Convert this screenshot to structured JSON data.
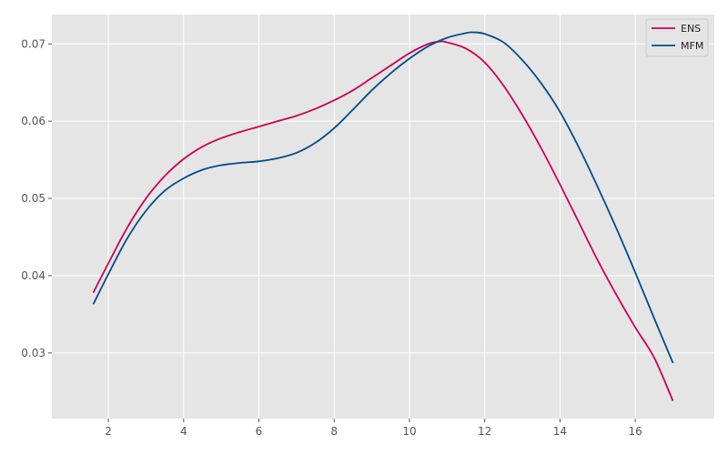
{
  "chart_data": {
    "type": "line",
    "title": "",
    "xlabel": "",
    "ylabel": "",
    "xlim": [
      0.5,
      18.1
    ],
    "ylim": [
      0.0215,
      0.0738
    ],
    "xticks": [
      2,
      4,
      6,
      8,
      10,
      12,
      14,
      16
    ],
    "yticks": [
      0.03,
      0.04,
      0.05,
      0.06,
      0.07
    ],
    "xtick_labels": [
      "2",
      "4",
      "6",
      "8",
      "10",
      "12",
      "14",
      "16"
    ],
    "ytick_labels": [
      "0.03",
      "0.04",
      "0.05",
      "0.06",
      "0.07"
    ],
    "grid": true,
    "background": "#e5e5e5",
    "legend": {
      "position": "top-right"
    },
    "series": [
      {
        "name": "ENS",
        "color": "#cc0055",
        "points": [
          [
            1.6,
            0.0378
          ],
          [
            2.0,
            0.0416
          ],
          [
            2.5,
            0.0462
          ],
          [
            3.0,
            0.05
          ],
          [
            3.5,
            0.0529
          ],
          [
            4.0,
            0.0551
          ],
          [
            4.5,
            0.0567
          ],
          [
            5.0,
            0.0578
          ],
          [
            5.5,
            0.0586
          ],
          [
            6.0,
            0.0593
          ],
          [
            6.5,
            0.06
          ],
          [
            7.0,
            0.0607
          ],
          [
            7.5,
            0.0616
          ],
          [
            8.0,
            0.0627
          ],
          [
            8.5,
            0.064
          ],
          [
            9.0,
            0.0656
          ],
          [
            9.5,
            0.0672
          ],
          [
            10.0,
            0.0688
          ],
          [
            10.5,
            0.07
          ],
          [
            10.8,
            0.0703
          ],
          [
            11.0,
            0.0702
          ],
          [
            11.5,
            0.0694
          ],
          [
            12.0,
            0.0676
          ],
          [
            12.5,
            0.0646
          ],
          [
            13.0,
            0.0608
          ],
          [
            13.5,
            0.0565
          ],
          [
            14.0,
            0.0518
          ],
          [
            14.5,
            0.0469
          ],
          [
            15.0,
            0.042
          ],
          [
            15.5,
            0.0375
          ],
          [
            16.0,
            0.0333
          ],
          [
            16.5,
            0.0294
          ],
          [
            17.0,
            0.0238
          ]
        ]
      },
      {
        "name": "MFM",
        "color": "#004c8c",
        "points": [
          [
            1.6,
            0.0363
          ],
          [
            2.0,
            0.0402
          ],
          [
            2.5,
            0.0448
          ],
          [
            3.0,
            0.0484
          ],
          [
            3.5,
            0.051
          ],
          [
            4.0,
            0.0526
          ],
          [
            4.5,
            0.0537
          ],
          [
            5.0,
            0.0543
          ],
          [
            5.5,
            0.0546
          ],
          [
            6.0,
            0.0548
          ],
          [
            6.5,
            0.0552
          ],
          [
            7.0,
            0.0559
          ],
          [
            7.5,
            0.0572
          ],
          [
            8.0,
            0.0591
          ],
          [
            8.5,
            0.0615
          ],
          [
            9.0,
            0.064
          ],
          [
            9.5,
            0.0662
          ],
          [
            10.0,
            0.0681
          ],
          [
            10.5,
            0.0697
          ],
          [
            11.0,
            0.0708
          ],
          [
            11.5,
            0.0714
          ],
          [
            11.7,
            0.0715
          ],
          [
            12.0,
            0.0713
          ],
          [
            12.5,
            0.0702
          ],
          [
            13.0,
            0.0679
          ],
          [
            13.5,
            0.0649
          ],
          [
            14.0,
            0.0612
          ],
          [
            14.5,
            0.0566
          ],
          [
            15.0,
            0.0515
          ],
          [
            15.5,
            0.0461
          ],
          [
            16.0,
            0.0404
          ],
          [
            16.5,
            0.0345
          ],
          [
            17.0,
            0.0287
          ]
        ]
      }
    ]
  }
}
